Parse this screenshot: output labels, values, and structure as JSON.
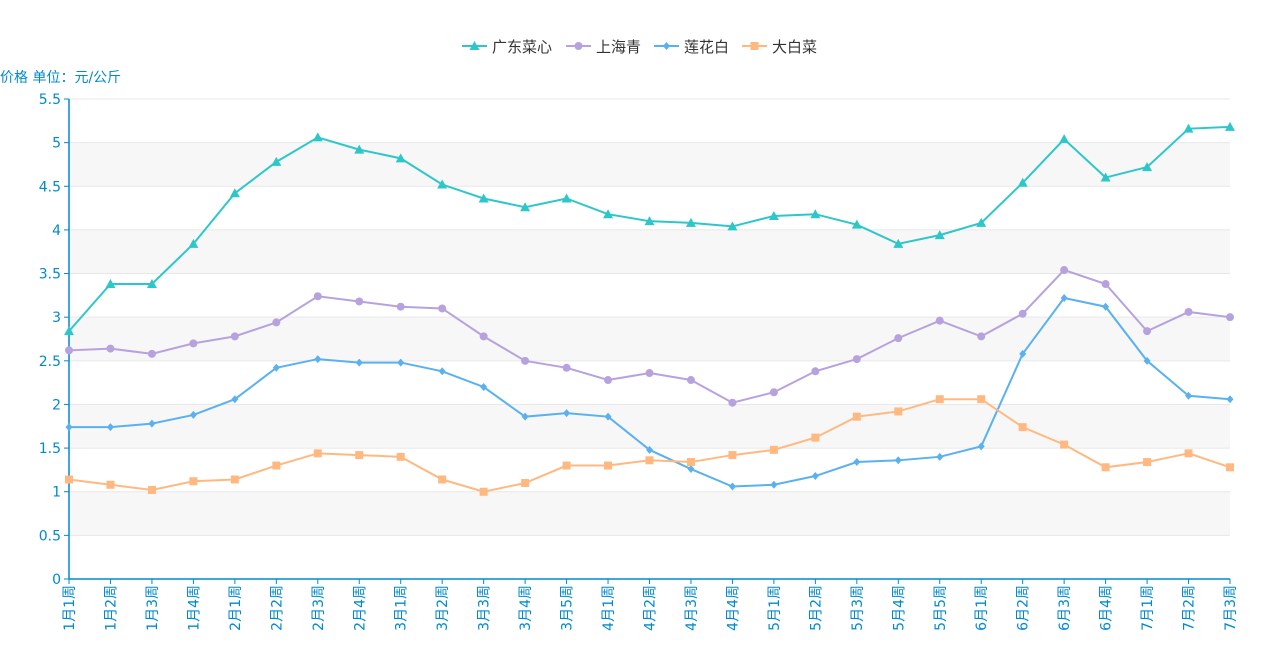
{
  "chart_data": {
    "type": "line",
    "ylabel": "价格 单位：元/公斤",
    "ylim": [
      0,
      5.5
    ],
    "yticks": [
      "0",
      "0.5",
      "1",
      "1.5",
      "2",
      "2.5",
      "3",
      "3.5",
      "4",
      "4.5",
      "5",
      "5.5"
    ],
    "legend_position": "top-center",
    "grid": true,
    "categories": [
      "1月1周",
      "1月2周",
      "1月3周",
      "1月4周",
      "2月1周",
      "2月2周",
      "2月3周",
      "2月4周",
      "3月1周",
      "3月2周",
      "3月3周",
      "3月4周",
      "3月5周",
      "4月1周",
      "4月2周",
      "4月3周",
      "4月4周",
      "5月1周",
      "5月2周",
      "5月3周",
      "5月4周",
      "5月5周",
      "6月1周",
      "6月2周",
      "6月3周",
      "6月4周",
      "7月1周",
      "7月2周",
      "7月3周"
    ],
    "series": [
      {
        "name": "广东菜心",
        "color": "#2ec7c9",
        "marker": "triangle",
        "values": [
          2.84,
          3.38,
          3.38,
          3.84,
          4.42,
          4.78,
          5.06,
          4.92,
          4.82,
          4.52,
          4.36,
          4.26,
          4.36,
          4.18,
          4.1,
          4.08,
          4.04,
          4.16,
          4.18,
          4.06,
          3.84,
          3.94,
          4.08,
          4.54,
          5.04,
          4.6,
          4.72,
          5.16,
          5.18
        ]
      },
      {
        "name": "上海青",
        "color": "#b6a2de",
        "marker": "circle",
        "values": [
          2.62,
          2.64,
          2.58,
          2.7,
          2.78,
          2.94,
          3.24,
          3.18,
          3.12,
          3.1,
          2.78,
          2.5,
          2.42,
          2.28,
          2.36,
          2.28,
          2.02,
          2.14,
          2.38,
          2.52,
          2.76,
          2.96,
          2.78,
          3.04,
          3.54,
          3.38,
          2.84,
          3.06,
          3.0
        ]
      },
      {
        "name": "莲花白",
        "color": "#5ab1ef",
        "marker": "diamond",
        "values": [
          1.74,
          1.74,
          1.78,
          1.88,
          2.06,
          2.42,
          2.52,
          2.48,
          2.48,
          2.38,
          2.2,
          1.86,
          1.9,
          1.86,
          1.48,
          1.26,
          1.06,
          1.08,
          1.18,
          1.34,
          1.36,
          1.4,
          1.52,
          2.58,
          3.22,
          3.12,
          2.5,
          2.1,
          2.06
        ]
      },
      {
        "name": "大白菜",
        "color": "#ffb980",
        "marker": "square",
        "values": [
          1.14,
          1.08,
          1.02,
          1.12,
          1.14,
          1.3,
          1.44,
          1.42,
          1.4,
          1.14,
          1.0,
          1.1,
          1.3,
          1.3,
          1.36,
          1.34,
          1.42,
          1.48,
          1.62,
          1.86,
          1.92,
          2.06,
          2.06,
          1.74,
          1.54,
          1.28,
          1.34,
          1.44,
          1.28
        ]
      }
    ],
    "axis_color": "#008acd"
  }
}
